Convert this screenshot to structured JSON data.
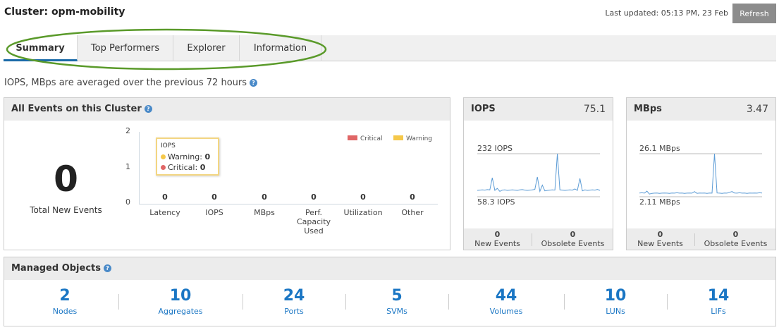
{
  "header": {
    "title": "Cluster: opm-mobility",
    "last_updated": "Last updated: 05:13 PM, 23 Feb",
    "refresh_label": "Refresh"
  },
  "tabs": [
    {
      "label": "Summary",
      "active": true
    },
    {
      "label": "Top Performers"
    },
    {
      "label": "Explorer"
    },
    {
      "label": "Information"
    }
  ],
  "annotation_color": "#5a9a2a",
  "note": "IOPS, MBps are averaged over the previous 72 hours",
  "events": {
    "title": "All Events on this Cluster",
    "total": "0",
    "total_label": "Total New Events",
    "chart_data": {
      "type": "bar",
      "categories": [
        "Latency",
        "IOPS",
        "MBps",
        "Perf. Capacity Used",
        "Utilization",
        "Other"
      ],
      "series": [
        {
          "name": "Critical",
          "values": [
            0,
            0,
            0,
            0,
            0,
            0
          ],
          "color": "#e06666"
        },
        {
          "name": "Warning",
          "values": [
            0,
            0,
            0,
            0,
            0,
            0
          ],
          "color": "#f5c84a"
        }
      ],
      "ylim": [
        0,
        2
      ],
      "yticks": [
        "0",
        "1",
        "2"
      ],
      "legend": "top-right",
      "data_labels": [
        "0",
        "0",
        "0",
        "0",
        "0",
        "0"
      ]
    },
    "tooltip": {
      "title": "IOPS",
      "warning_label": "Warning:",
      "warning_value": "0",
      "critical_label": "Critical:",
      "critical_value": "0"
    }
  },
  "iops": {
    "title": "IOPS",
    "value": "75.1",
    "max_label": "232 IOPS",
    "min_label": "58.3 IOPS",
    "new_events": "0",
    "new_events_label": "New Events",
    "obsolete_events": "0",
    "obsolete_events_label": "Obsolete Events",
    "chart_data": {
      "type": "line",
      "ylim": [
        58.3,
        232
      ],
      "color": "#5b9bd5",
      "values": [
        84,
        85,
        86,
        85,
        87,
        86,
        135,
        84,
        92,
        80,
        85,
        86,
        84,
        85,
        86,
        85,
        84,
        86,
        87,
        85,
        84,
        85,
        86,
        88,
        138,
        80,
        105,
        82,
        84,
        85,
        86,
        85,
        232,
        86,
        85,
        84,
        85,
        86,
        85,
        90,
        84,
        132,
        82,
        86,
        84,
        85,
        86,
        85,
        88,
        84
      ]
    }
  },
  "mbps": {
    "title": "MBps",
    "value": "3.47",
    "max_label": "26.1 MBps",
    "min_label": "2.11 MBps",
    "new_events": "0",
    "new_events_label": "New Events",
    "obsolete_events": "0",
    "obsolete_events_label": "Obsolete Events",
    "chart_data": {
      "type": "line",
      "ylim": [
        2.11,
        26.1
      ],
      "color": "#5b9bd5",
      "values": [
        4.2,
        4.3,
        4.1,
        5.2,
        3.6,
        4.0,
        4.1,
        4.2,
        4.0,
        4.1,
        4.2,
        4.1,
        4.0,
        4.2,
        4.1,
        4.3,
        4.1,
        4.2,
        4.0,
        4.1,
        4.2,
        4.1,
        5.0,
        4.0,
        4.2,
        4.1,
        4.2,
        4.0,
        4.2,
        4.1,
        26.1,
        4.2,
        4.1,
        4.0,
        4.2,
        4.1,
        4.6,
        5.0,
        4.2,
        4.1,
        4.3,
        4.1,
        4.2,
        4.0,
        4.2,
        4.1,
        4.2,
        4.1,
        4.3,
        4.2
      ]
    }
  },
  "managed_objects": {
    "title": "Managed Objects",
    "items": [
      {
        "count": "2",
        "label": "Nodes"
      },
      {
        "count": "10",
        "label": "Aggregates"
      },
      {
        "count": "24",
        "label": "Ports"
      },
      {
        "count": "5",
        "label": "SVMs"
      },
      {
        "count": "44",
        "label": "Volumes"
      },
      {
        "count": "10",
        "label": "LUNs"
      },
      {
        "count": "14",
        "label": "LIFs"
      }
    ]
  }
}
